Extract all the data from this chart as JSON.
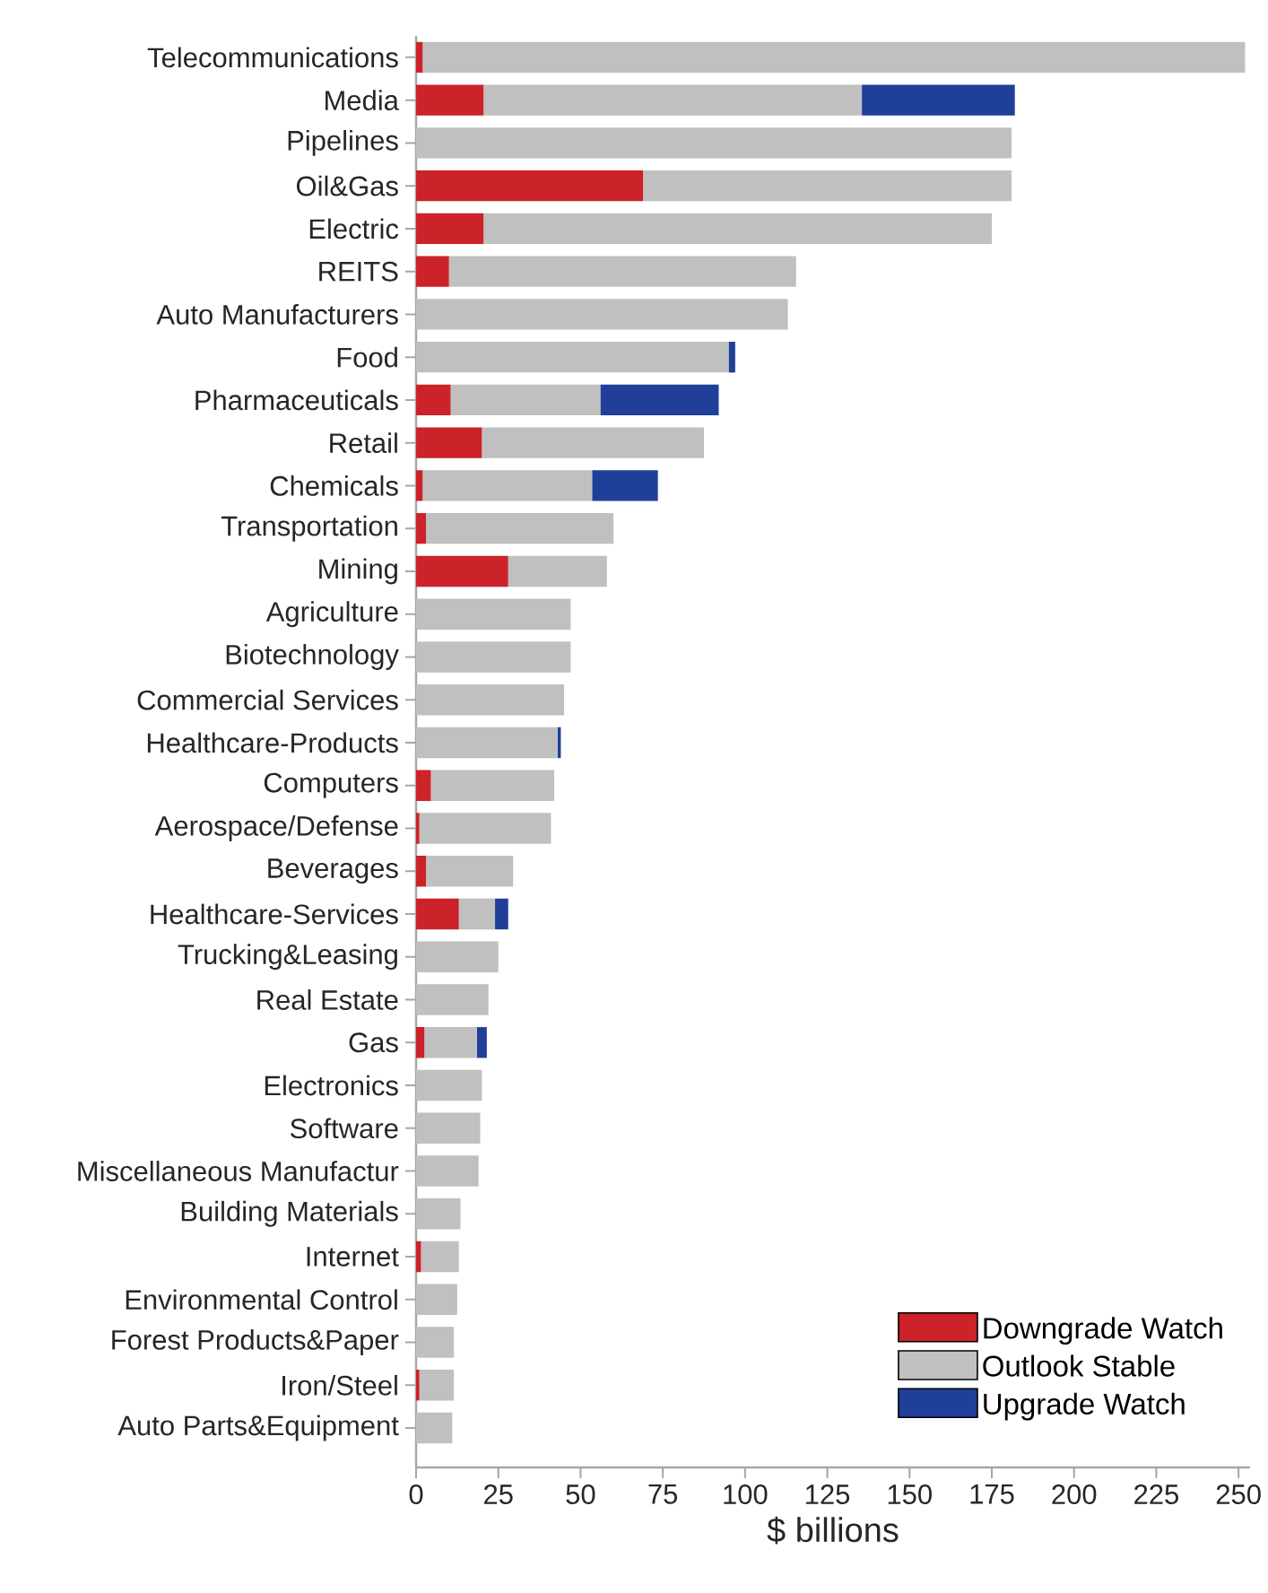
{
  "chart_data": {
    "type": "bar",
    "orientation": "horizontal",
    "stacked": true,
    "xlabel": "$ billions",
    "legend": "bottom right",
    "categories": [
      "Telecommunications",
      "Media",
      "Pipelines",
      "Oil&Gas",
      "Electric",
      "REITS",
      "Auto Manufacturers",
      "Food",
      "Pharmaceuticals",
      "Retail",
      "Chemicals",
      "Transportation",
      "Mining",
      "Agriculture",
      "Biotechnology",
      "Commercial Services",
      "Healthcare-Products",
      "Computers",
      "Aerospace/Defense",
      "Beverages",
      "Healthcare-Services",
      "Trucking&Leasing",
      "Real Estate",
      "Gas",
      "Electronics",
      "Software",
      "Miscellaneous Manufactur",
      "Building Materials",
      "Internet",
      "Environmental Control",
      "Forest Products&Paper",
      "Iron/Steel",
      "Auto Parts&Equipment"
    ],
    "series": [
      {
        "name": "Downgrade Watch",
        "color": "#cc2229",
        "values": [
          2,
          20.5,
          0,
          69,
          20.5,
          10,
          0,
          0,
          10.5,
          20,
          2,
          3,
          28,
          0,
          0,
          0,
          0,
          4.5,
          1,
          3,
          13,
          0,
          0,
          2.5,
          0,
          0,
          0,
          0,
          1.5,
          0,
          0,
          1,
          0
        ]
      },
      {
        "name": "Outlook Stable",
        "color": "#c0c0c0",
        "values": [
          250,
          115,
          181,
          112,
          154.5,
          105.5,
          113,
          95,
          45.5,
          67.5,
          51.5,
          57,
          30,
          47,
          47,
          45,
          43,
          37.5,
          40,
          26.5,
          11,
          25,
          22,
          16,
          20,
          19.5,
          19,
          13.5,
          11.5,
          12.5,
          11.5,
          10.5,
          11
        ]
      },
      {
        "name": "Upgrade Watch",
        "color": "#1f3f99",
        "values": [
          0,
          46.5,
          0,
          0,
          0,
          0,
          0,
          2,
          36,
          0,
          20,
          0,
          0,
          0,
          0,
          0,
          1,
          0,
          0,
          0,
          4,
          0,
          0,
          3,
          0,
          0,
          0,
          0,
          0,
          0,
          0,
          0,
          0
        ]
      }
    ],
    "xlim": [
      0,
      253.5
    ],
    "xticks": [
      0,
      25,
      50,
      75,
      100,
      125,
      150,
      175,
      200,
      225,
      250
    ]
  }
}
